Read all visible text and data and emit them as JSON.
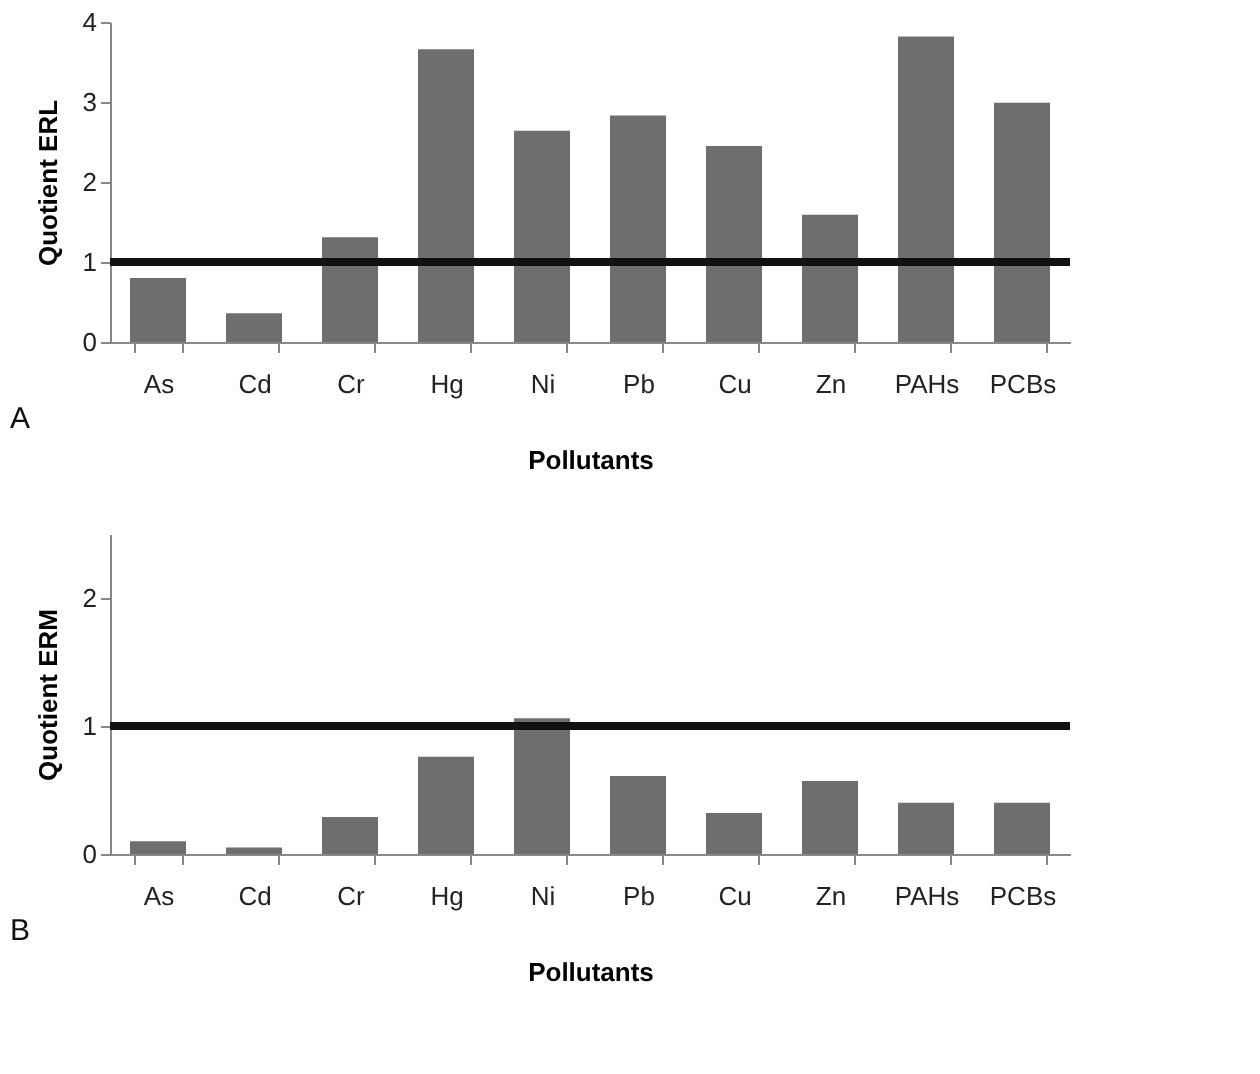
{
  "chart_data": [
    {
      "type": "bar",
      "ylabel": "Quotient ERL",
      "xlabel": "Pollutants",
      "categories": [
        "As",
        "Cd",
        "Cr",
        "Hg",
        "Ni",
        "Pb",
        "Cu",
        "Zn",
        "PAHs",
        "PCBs"
      ],
      "values": [
        0.8,
        0.36,
        1.31,
        3.66,
        2.64,
        2.83,
        2.45,
        1.59,
        3.82,
        2.99
      ],
      "color": "#6e6e6e",
      "ylim": [
        0,
        4
      ],
      "yticks": [
        0,
        1,
        2,
        3,
        4
      ],
      "grid": false,
      "ref_lines": [
        {
          "axis": "y",
          "value": 1,
          "color": "#111111"
        }
      ],
      "annotations": [
        "A"
      ]
    },
    {
      "type": "bar",
      "ylabel": "Quotient ERM",
      "xlabel": "Pollutants",
      "categories": [
        "As",
        "Cd",
        "Cr",
        "Hg",
        "Ni",
        "Pb",
        "Cu",
        "Zn",
        "PAHs",
        "PCBs"
      ],
      "values": [
        0.1,
        0.05,
        0.29,
        0.76,
        1.06,
        0.61,
        0.32,
        0.57,
        0.4,
        0.4
      ],
      "color": "#6e6e6e",
      "ylim": [
        0,
        2.5
      ],
      "yticks": [
        0,
        1,
        2
      ],
      "grid": false,
      "ref_lines": [
        {
          "axis": "y",
          "value": 1,
          "color": "#111111"
        }
      ],
      "annotations": [
        "B"
      ]
    }
  ]
}
